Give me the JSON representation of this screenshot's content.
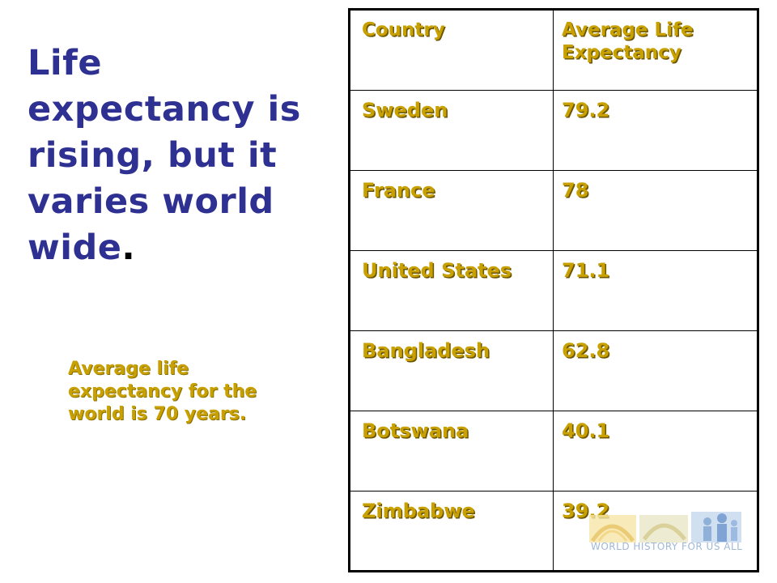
{
  "title": {
    "text": "Life expectancy is rising, but it varies world wide",
    "period": "."
  },
  "subtitle": "Average life expectancy for the world is 70 years.",
  "table": {
    "headers": [
      "Country",
      "Average Life Expectancy"
    ],
    "rows": [
      [
        "Sweden",
        "79.2"
      ],
      [
        "France",
        "78"
      ],
      [
        "United States",
        "71.1"
      ],
      [
        "Bangladesh",
        "62.8"
      ],
      [
        "Botswana",
        "40.1"
      ],
      [
        "Zimbabwe",
        "39.2"
      ]
    ]
  },
  "logo": {
    "text": "WORLD HISTORY FOR US ALL",
    "icon": "world-history-logo"
  },
  "colors": {
    "title": "#2e3192",
    "table_text": "#c8a000",
    "logo": "#9fb7d6"
  }
}
